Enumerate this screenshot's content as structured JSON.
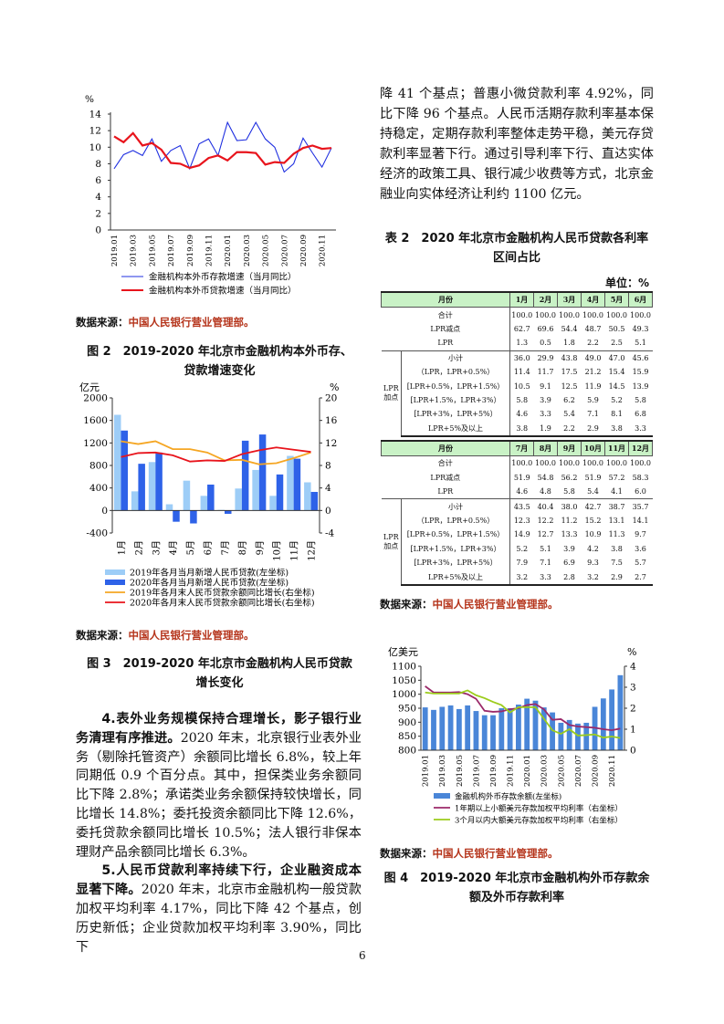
{
  "page_number": "6",
  "source_label": "数据来源：",
  "source_org": "中国人民银行营业管理部。",
  "right_intro_text": "降 41 个基点；普惠小微贷款利率 4.92%，同比下降 96 个基点。人民币活期存款利率基本保持稳定，定期存款利率整体走势平稳，美元存贷款利率显著下行。通过引导利率下行、直达实体经济的政策工具、银行减少收费等方式，北京金融业向实体经济让利约 1100 亿元。",
  "figure2_caption": [
    "图 2　2019-2020 年北京市金融机构本外币存、",
    "贷款增速变化"
  ],
  "figure3_caption": [
    "图 3　2019-2020 年北京市金融机构人民币贷款",
    "增长变化"
  ],
  "figure4_caption": [
    "图 4　2019-2020 年北京市金融机构外币存款余",
    "额及外币存款利率"
  ],
  "body_paragraphs": [
    {
      "lead": "4.表外业务规模保持合理增长，影子银行业务清理有序推进。",
      "text": "2020 年末，北京银行业表外业务（剔除托管资产）余额同比增长 6.8%，较上年同期低 0.9 个百分点。其中，担保类业务余额同比下降 2.8%；承诺类业务余额保持较快增长，同比增长 14.8%；委托投资余额同比下降 12.6%，委托贷款余额同比增长 10.5%；法人银行非保本理财产品余额同比增长 6.3%。"
    },
    {
      "lead": "5.人民币贷款利率持续下行，企业融资成本显著下降。",
      "text": "2020 年末，北京市金融机构一般贷款加权平均利率 4.17%，同比下降 42 个基点，创历史新低；企业贷款加权平均利率 3.90%，同比下"
    }
  ],
  "table2": {
    "title": [
      "表 2　2020 年北京市金融机构人民币贷款各利率",
      "区间占比"
    ],
    "unit": "单位：%",
    "month_header": "月份",
    "group_label": "LPR加点",
    "halves": [
      {
        "months": [
          "1月",
          "2月",
          "3月",
          "4月",
          "5月",
          "6月"
        ],
        "rows": [
          {
            "label": "合计",
            "values": [
              "100.0",
              "100.0",
              "100.0",
              "100.0",
              "100.0",
              "100.0"
            ]
          },
          {
            "label": "LPR减点",
            "values": [
              "62.7",
              "69.6",
              "54.4",
              "48.7",
              "50.5",
              "49.3"
            ]
          },
          {
            "label": "LPR",
            "values": [
              "1.3",
              "0.5",
              "1.8",
              "2.2",
              "2.5",
              "5.1"
            ]
          },
          {
            "label": "小计",
            "values": [
              "36.0",
              "29.9",
              "43.8",
              "49.0",
              "47.0",
              "45.6"
            ]
          },
          {
            "label": "（LPR，LPR+0.5%）",
            "values": [
              "11.4",
              "11.7",
              "17.5",
              "21.2",
              "15.4",
              "15.9"
            ]
          },
          {
            "label": "[LPR+0.5%，LPR+1.5%）",
            "values": [
              "10.5",
              "9.1",
              "12.5",
              "11.9",
              "14.5",
              "13.9"
            ]
          },
          {
            "label": "[LPR+1.5%，LPR+3%）",
            "values": [
              "5.8",
              "3.9",
              "6.2",
              "5.9",
              "5.2",
              "5.8"
            ]
          },
          {
            "label": "[LPR+3%，LPR+5%）",
            "values": [
              "4.6",
              "3.3",
              "5.4",
              "7.1",
              "8.1",
              "6.8"
            ]
          },
          {
            "label": "LPR+5%及以上",
            "values": [
              "3.8",
              "1.9",
              "2.2",
              "2.9",
              "3.8",
              "3.3"
            ]
          }
        ]
      },
      {
        "months": [
          "7月",
          "8月",
          "9月",
          "10月",
          "11月",
          "12月"
        ],
        "rows": [
          {
            "label": "合计",
            "values": [
              "100.0",
              "100.0",
              "100.0",
              "100.0",
              "100.0",
              "100.0"
            ]
          },
          {
            "label": "LPR减点",
            "values": [
              "51.9",
              "54.8",
              "56.2",
              "51.9",
              "57.2",
              "58.3"
            ]
          },
          {
            "label": "LPR",
            "values": [
              "4.6",
              "4.8",
              "5.8",
              "5.4",
              "4.1",
              "6.0"
            ]
          },
          {
            "label": "小计",
            "values": [
              "43.5",
              "40.4",
              "38.0",
              "42.7",
              "38.7",
              "35.7"
            ]
          },
          {
            "label": "（LPR，LPR+0.5%）",
            "values": [
              "12.3",
              "12.2",
              "11.2",
              "15.2",
              "13.1",
              "14.1"
            ]
          },
          {
            "label": "[LPR+0.5%，LPR+1.5%）",
            "values": [
              "14.9",
              "12.7",
              "13.3",
              "10.9",
              "11.3",
              "9.7"
            ]
          },
          {
            "label": "[LPR+1.5%，LPR+3%）",
            "values": [
              "5.2",
              "5.1",
              "3.9",
              "4.2",
              "3.8",
              "3.6"
            ]
          },
          {
            "label": "[LPR+3%，LPR+5%）",
            "values": [
              "7.9",
              "7.1",
              "6.9",
              "9.3",
              "7.5",
              "5.7"
            ]
          },
          {
            "label": "LPR+5%及以上",
            "values": [
              "3.2",
              "3.3",
              "2.8",
              "3.2",
              "2.9",
              "2.7"
            ]
          }
        ]
      }
    ]
  },
  "chart_data": [
    {
      "type": "line",
      "ylabel": "%",
      "ylim": [
        0,
        14
      ],
      "yticks": [
        "0",
        "2",
        "4",
        "6",
        "8",
        "10",
        "12",
        "14"
      ],
      "x": [
        "2019.01",
        "2019.02",
        "2019.03",
        "2019.04",
        "2019.05",
        "2019.06",
        "2019.07",
        "2019.08",
        "2019.09",
        "2019.10",
        "2019.11",
        "2019.12",
        "2020.01",
        "2020.02",
        "2020.03",
        "2020.04",
        "2020.05",
        "2020.06",
        "2020.07",
        "2020.08",
        "2020.09",
        "2020.10",
        "2020.11",
        "2020.12"
      ],
      "xtick_labels": [
        "2019.01",
        "2019.03",
        "2019.05",
        "2019.07",
        "2019.09",
        "2019.11",
        "2020.01",
        "2020.03",
        "2020.05",
        "2020.07",
        "2020.09",
        "2020.11"
      ],
      "legend": "bottom",
      "series": [
        {
          "name": "金融机构本外币存款增速（当月同比）",
          "color": "#1f2fe0",
          "values": [
            7.4,
            9.1,
            9.6,
            9.0,
            11.0,
            8.3,
            9.6,
            10.2,
            7.4,
            10.4,
            11.0,
            9.0,
            13.0,
            10.8,
            10.9,
            13.0,
            11.0,
            10.0,
            7.0,
            8.0,
            11.1,
            9.3,
            7.6,
            9.9
          ]
        },
        {
          "name": "金融机构本外币贷款增速（当月同比）",
          "color": "#e8141c",
          "values": [
            11.3,
            10.6,
            11.7,
            10.2,
            10.5,
            9.7,
            8.1,
            8.0,
            7.5,
            7.8,
            8.7,
            9.0,
            8.4,
            9.4,
            9.4,
            9.3,
            7.9,
            8.2,
            8.1,
            9.2,
            9.9,
            10.2,
            9.8,
            9.9
          ]
        }
      ]
    },
    {
      "type": "bar+line",
      "ylabel_left": "亿元",
      "ylabel_right": "%",
      "ylim_left": [
        -400,
        2000
      ],
      "ylim_right": [
        -4,
        20
      ],
      "yticks_left": [
        "-400",
        "0",
        "400",
        "800",
        "1200",
        "1600",
        "2000"
      ],
      "yticks_right": [
        "-4",
        "0",
        "4",
        "8",
        "12",
        "16",
        "20"
      ],
      "categories": [
        "1月",
        "2月",
        "3月",
        "4月",
        "5月",
        "6月",
        "7月",
        "8月",
        "9月",
        "10月",
        "11月",
        "12月"
      ],
      "legend": "bottom",
      "series": [
        {
          "name": "2019年各月当月新增人民币贷款(左坐标)",
          "kind": "bar",
          "axis": "left",
          "color": "#9dcdf7",
          "values": [
            1700,
            340,
            860,
            110,
            530,
            260,
            10,
            390,
            720,
            260,
            970,
            500
          ]
        },
        {
          "name": "2020年各月当月新增人民币贷款(左坐标)",
          "kind": "bar",
          "axis": "left",
          "color": "#2e62e8",
          "values": [
            1420,
            830,
            1030,
            -200,
            -230,
            460,
            -60,
            1240,
            1350,
            640,
            920,
            330
          ]
        },
        {
          "name": "2019年各月末人民币贷款余额同比增长(右坐标)",
          "kind": "line",
          "axis": "right",
          "color": "#f5a623",
          "values": [
            12.3,
            11.8,
            12.3,
            10.9,
            10.9,
            10.3,
            8.9,
            9.0,
            8.2,
            8.4,
            9.3,
            10.3
          ]
        },
        {
          "name": "2020年各月末人民币贷款余额同比增长(右坐标)",
          "kind": "line",
          "axis": "right",
          "color": "#e8141c",
          "values": [
            9.5,
            10.2,
            10.3,
            9.8,
            8.7,
            8.9,
            8.8,
            10.0,
            10.7,
            11.2,
            10.8,
            10.4
          ]
        }
      ]
    },
    {
      "type": "bar+line",
      "ylabel_left": "亿美元",
      "ylabel_right": "%",
      "ylim_left": [
        800,
        1100
      ],
      "ylim_right": [
        0,
        4
      ],
      "yticks_left": [
        "800",
        "850",
        "900",
        "950",
        "1000",
        "1050",
        "1100"
      ],
      "yticks_right": [
        "0",
        "1",
        "2",
        "3",
        "4"
      ],
      "x": [
        "2019.01",
        "2019.02",
        "2019.03",
        "2019.04",
        "2019.05",
        "2019.06",
        "2019.07",
        "2019.08",
        "2019.09",
        "2019.10",
        "2019.11",
        "2019.12",
        "2020.01",
        "2020.02",
        "2020.03",
        "2020.04",
        "2020.05",
        "2020.06",
        "2020.07",
        "2020.08",
        "2020.09",
        "2020.10",
        "2020.11",
        "2020.12"
      ],
      "xtick_labels": [
        "2019.01",
        "2019.03",
        "2019.05",
        "2019.07",
        "2019.09",
        "2019.11",
        "2020.01",
        "2020.03",
        "2020.05",
        "2020.07",
        "2020.09",
        "2020.11"
      ],
      "legend": "bottom",
      "series": [
        {
          "name": "金融机构外币存款余额(左坐标)",
          "kind": "bar",
          "axis": "left",
          "color": "#4a86d8",
          "values": [
            953,
            944,
            955,
            960,
            947,
            960,
            940,
            925,
            925,
            950,
            950,
            963,
            984,
            977,
            953,
            935,
            898,
            908,
            895,
            898,
            955,
            985,
            1017,
            1068
          ]
        },
        {
          "name": "1年期以上小额美元存款加权平均利率（右坐标）",
          "kind": "line",
          "axis": "right",
          "color": "#9b2a6a",
          "values": [
            3.05,
            2.75,
            2.75,
            2.75,
            2.77,
            2.67,
            2.45,
            1.88,
            1.83,
            1.85,
            1.95,
            2.0,
            2.15,
            2.2,
            1.95,
            1.45,
            1.48,
            1.2,
            1.13,
            1.1,
            1.07,
            1.0,
            0.95,
            1.03
          ]
        },
        {
          "name": "3个月以内大额美元存款加权平均利率（右坐标）",
          "kind": "line",
          "axis": "right",
          "color": "#9ccc1c",
          "values": [
            2.75,
            2.7,
            2.7,
            2.7,
            2.7,
            2.85,
            2.62,
            2.48,
            2.3,
            2.15,
            1.8,
            2.05,
            2.05,
            2.05,
            1.5,
            0.95,
            0.78,
            1.0,
            0.7,
            0.72,
            0.75,
            0.6,
            0.65,
            0.58
          ]
        }
      ]
    }
  ]
}
